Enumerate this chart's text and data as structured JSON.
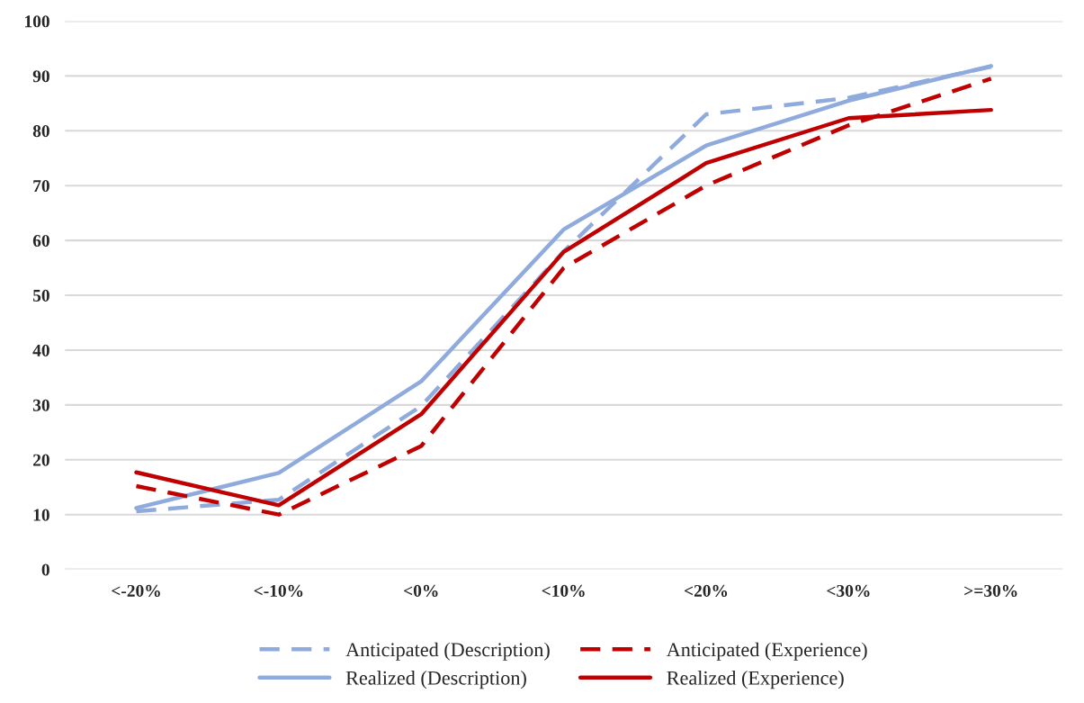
{
  "chart_data": {
    "type": "line",
    "categories": [
      "<-20%",
      "<-10%",
      "<0%",
      "<10%",
      "<20%",
      "<30%",
      ">=30%"
    ],
    "series": [
      {
        "name": "Anticipated (Description)",
        "color": "#8faadc",
        "line_style": "dashed",
        "values": [
          10.6,
          12.7,
          29.8,
          58,
          83,
          86,
          91.7
        ]
      },
      {
        "name": "Realized (Description)",
        "color": "#8faadc",
        "line_style": "solid",
        "values": [
          11.2,
          17.6,
          34.3,
          62,
          77.3,
          85.5,
          91.8
        ]
      },
      {
        "name": "Anticipated (Experience)",
        "color": "#c00000",
        "line_style": "dashed",
        "values": [
          15.2,
          10,
          22.5,
          55,
          70,
          81,
          89.5
        ]
      },
      {
        "name": "Realized (Experience)",
        "color": "#c00000",
        "line_style": "solid",
        "values": [
          17.7,
          11.7,
          28.3,
          57.9,
          74.1,
          82.3,
          83.8
        ]
      }
    ],
    "ylim": [
      0,
      100
    ],
    "yticks": [
      0,
      10,
      20,
      30,
      40,
      50,
      60,
      70,
      80,
      90,
      100
    ],
    "grid": "y",
    "legend": "bottom",
    "marker": "none"
  }
}
